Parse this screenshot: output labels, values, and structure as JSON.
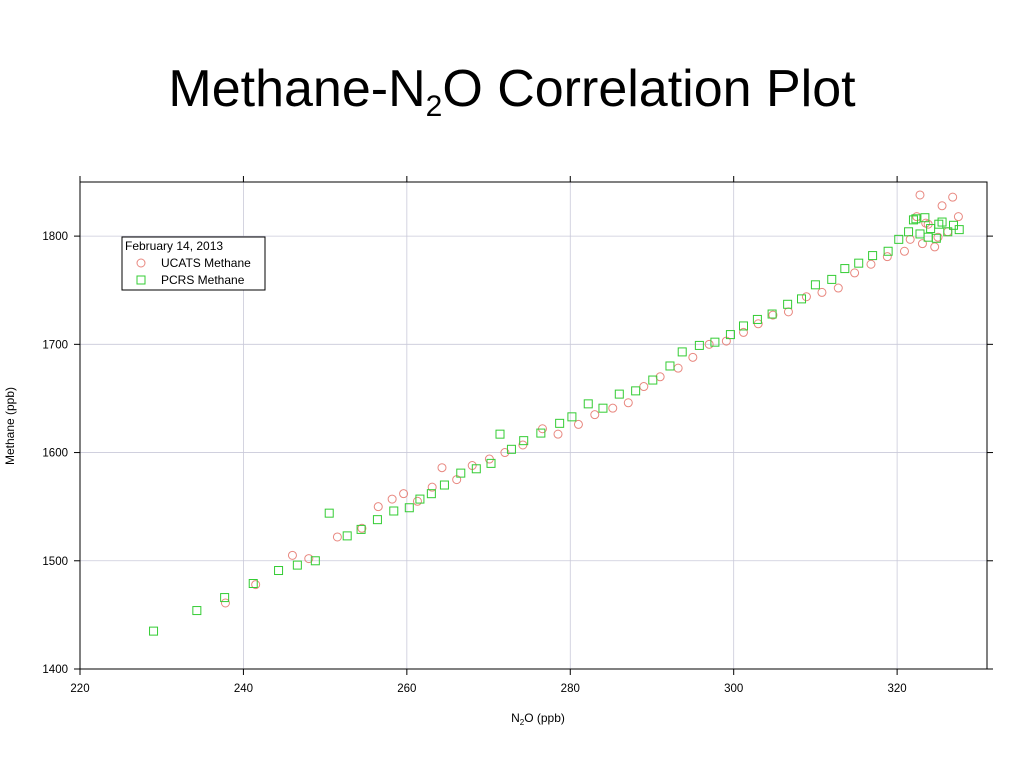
{
  "slide": {
    "title_pre": "Methane-N",
    "title_sub": "2",
    "title_post": "O Correlation Plot"
  },
  "colors": {
    "ucats": "#e8877f",
    "pcrs": "#33cc33",
    "grid": "#c9c9d9",
    "axis": "#000000"
  },
  "chart_data": {
    "type": "scatter",
    "title": "Methane-N2O Correlation Plot",
    "xlabel_pre": "N",
    "xlabel_sub": "2",
    "xlabel_post": "O (ppb)",
    "ylabel": "Methane (ppb)",
    "xlim": [
      220,
      331
    ],
    "ylim": [
      1400,
      1850
    ],
    "xticks": [
      220,
      240,
      260,
      280,
      300,
      320
    ],
    "yticks": [
      1400,
      1500,
      1600,
      1700,
      1800
    ],
    "grid": true,
    "legend_position": "top-left",
    "legend_title": "February 14, 2013",
    "series": [
      {
        "name": "UCATS Methane",
        "marker": "circle",
        "x": [
          237.8,
          241.5,
          246.0,
          248.0,
          251.5,
          254.5,
          256.5,
          258.2,
          259.6,
          261.3,
          263.1,
          264.3,
          266.1,
          268.0,
          270.1,
          272.0,
          274.2,
          276.6,
          278.5,
          281.0,
          283.0,
          285.2,
          287.1,
          289.0,
          291.0,
          293.2,
          295.0,
          297.0,
          299.1,
          301.2,
          303.0,
          304.8,
          306.7,
          308.9,
          310.8,
          312.8,
          314.8,
          316.8,
          318.8,
          320.9,
          321.6,
          322.4,
          323.1,
          323.8,
          324.6,
          325.5,
          326.2,
          326.8,
          327.5,
          322.8,
          325.0,
          323.5
        ],
        "y": [
          1461,
          1478,
          1505,
          1502,
          1522,
          1530,
          1550,
          1557,
          1562,
          1555,
          1568,
          1586,
          1575,
          1588,
          1594,
          1600,
          1607,
          1622,
          1617,
          1626,
          1635,
          1641,
          1646,
          1661,
          1670,
          1678,
          1688,
          1700,
          1703,
          1711,
          1719,
          1727,
          1730,
          1744,
          1748,
          1752,
          1766,
          1774,
          1781,
          1786,
          1797,
          1818,
          1793,
          1811,
          1790,
          1828,
          1804,
          1836,
          1818,
          1838,
          1799,
          1812
        ]
      },
      {
        "name": "PCRS Methane",
        "marker": "square",
        "x": [
          229.0,
          234.3,
          237.7,
          241.2,
          244.3,
          246.6,
          248.8,
          250.5,
          252.7,
          254.4,
          256.4,
          258.4,
          260.3,
          261.6,
          263.0,
          264.6,
          266.6,
          268.5,
          270.3,
          271.4,
          272.8,
          274.3,
          276.4,
          278.7,
          280.2,
          282.2,
          284.0,
          286.0,
          288.0,
          290.1,
          292.2,
          293.7,
          295.8,
          297.7,
          299.6,
          301.2,
          302.9,
          304.7,
          306.6,
          308.3,
          310.0,
          312.0,
          313.6,
          315.3,
          317.0,
          318.9,
          320.2,
          321.4,
          322.0,
          322.8,
          323.4,
          324.1,
          324.8,
          325.5,
          326.2,
          326.9,
          327.6,
          322.3,
          325.1,
          323.8
        ],
        "y": [
          1435,
          1454,
          1466,
          1479,
          1491,
          1496,
          1500,
          1544,
          1523,
          1529,
          1538,
          1546,
          1549,
          1557,
          1562,
          1570,
          1581,
          1585,
          1590,
          1617,
          1603,
          1611,
          1618,
          1627,
          1633,
          1645,
          1641,
          1654,
          1657,
          1667,
          1680,
          1693,
          1699,
          1702,
          1709,
          1717,
          1723,
          1728,
          1737,
          1742,
          1755,
          1760,
          1770,
          1775,
          1782,
          1786,
          1797,
          1804,
          1815,
          1802,
          1817,
          1807,
          1798,
          1813,
          1804,
          1810,
          1806,
          1816,
          1811,
          1799
        ]
      }
    ]
  }
}
